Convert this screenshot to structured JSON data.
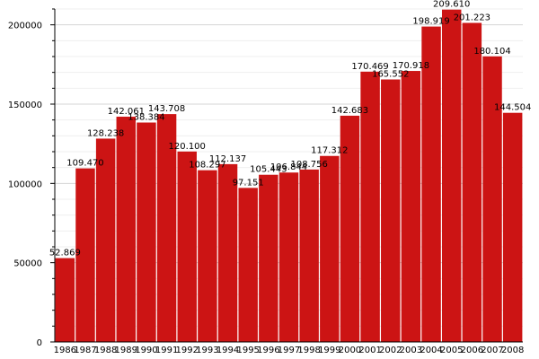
{
  "chart_data": {
    "type": "bar",
    "categories": [
      "1986",
      "1987",
      "1988",
      "1989",
      "1990",
      "1991",
      "1992",
      "1993",
      "1994",
      "1995",
      "1996",
      "1997",
      "1998",
      "1999",
      "2000",
      "2001",
      "2002",
      "2003",
      "2004",
      "2005",
      "2006",
      "2007",
      "2008"
    ],
    "values": [
      52869,
      109470,
      128238,
      142061,
      138384,
      143708,
      120100,
      108297,
      112137,
      97151,
      105443,
      106844,
      108756,
      117312,
      142683,
      170469,
      165552,
      170918,
      198919,
      209610,
      201223,
      180104,
      144504
    ],
    "data_labels": [
      "52.869",
      "109.470",
      "128.238",
      "142.061",
      "138.384",
      "143.708",
      "120.100",
      "108.297",
      "112.137",
      "97.151",
      "105.443",
      "106.844",
      "108.756",
      "117.312",
      "142.683",
      "170.469",
      "165.552",
      "170.918",
      "198.919",
      "209.610",
      "201.223",
      "180.104",
      "144.504"
    ],
    "ylim": [
      0,
      210000
    ],
    "yticks": [
      0,
      50000,
      100000,
      150000,
      200000
    ],
    "ytick_labels": [
      "0",
      "50000",
      "100000",
      "150000",
      "200000"
    ],
    "grid": "horizontal",
    "bar_color": "#cc1414",
    "title": "",
    "xlabel": "",
    "ylabel": ""
  }
}
